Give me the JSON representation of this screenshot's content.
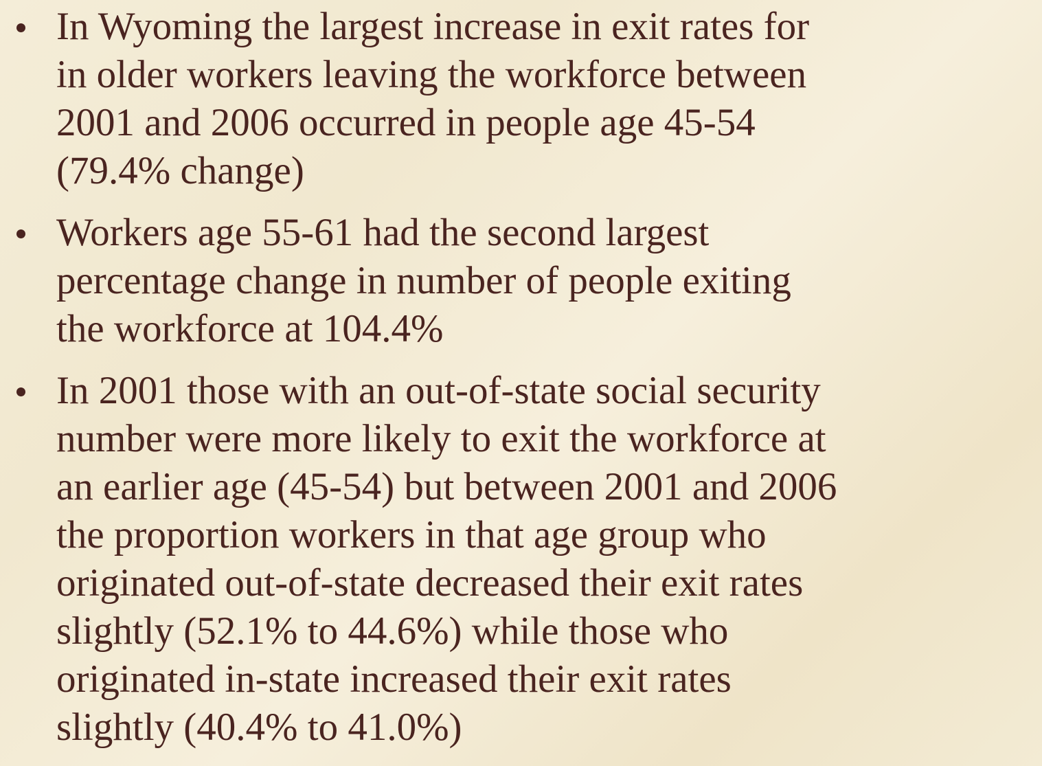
{
  "bullets": [
    {
      "lines": [
        "In Wyoming the largest increase in exit rates for",
        "in older workers leaving the workforce between",
        "2001 and 2006 occurred in people age 45-54",
        "(79.4% change)"
      ]
    },
    {
      "lines": [
        "Workers age 55-61 had the second largest",
        "percentage change in number of people exiting",
        "the workforce at 104.4%"
      ]
    },
    {
      "lines": [
        "In 2001 those with an out-of-state social security",
        "number were more likely to exit the workforce at",
        "an earlier age (45-54) but between 2001 and 2006",
        "the proportion workers in that age group who",
        "originated out-of-state decreased their exit rates",
        "slightly (52.1% to 44.6%) while those who",
        "originated in-state increased their exit rates",
        "slightly (40.4% to 41.0%)"
      ]
    }
  ]
}
